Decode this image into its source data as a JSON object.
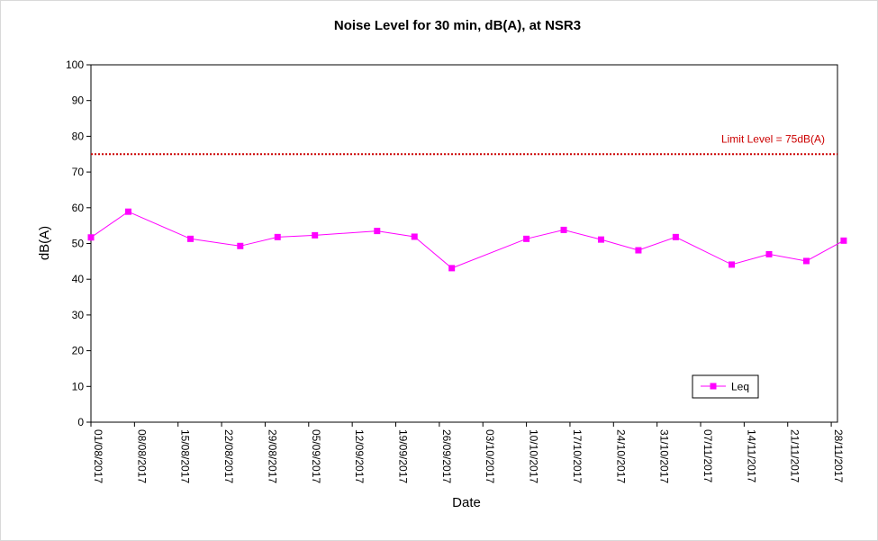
{
  "chart_data": {
    "type": "line",
    "title": "Noise Level for 30 min, dB(A), at NSR3",
    "xlabel": "Date",
    "ylabel": "dB(A)",
    "ylim": [
      0,
      100
    ],
    "yticks": [
      0,
      10,
      20,
      30,
      40,
      50,
      60,
      70,
      80,
      90,
      100
    ],
    "xlim": [
      "01/08/2017",
      "29/11/2017"
    ],
    "xticks": [
      "01/08/2017",
      "08/08/2017",
      "15/08/2017",
      "22/08/2017",
      "29/08/2017",
      "05/09/2017",
      "12/09/2017",
      "19/09/2017",
      "26/09/2017",
      "03/10/2017",
      "10/10/2017",
      "17/10/2017",
      "24/10/2017",
      "31/10/2017",
      "07/11/2017",
      "14/11/2017",
      "21/11/2017",
      "28/11/2017"
    ],
    "grid": false,
    "legend_position": "bottom-right",
    "limit_line": {
      "value": 75,
      "label": "Limit Level = 75dB(A)",
      "color": "#cc0000"
    },
    "series": [
      {
        "name": "Leq",
        "color": "#ff00ff",
        "x": [
          "01/08/2017",
          "07/08/2017",
          "17/08/2017",
          "25/08/2017",
          "31/08/2017",
          "06/09/2017",
          "16/09/2017",
          "22/09/2017",
          "28/09/2017",
          "10/10/2017",
          "16/10/2017",
          "22/10/2017",
          "28/10/2017",
          "03/11/2017",
          "12/11/2017",
          "18/11/2017",
          "24/11/2017",
          "30/11/2017"
        ],
        "values": [
          51.7,
          58.9,
          51.3,
          49.3,
          51.8,
          52.3,
          53.5,
          51.9,
          43.1,
          51.3,
          53.8,
          51.1,
          48.1,
          51.8,
          44.1,
          47.0,
          45.1,
          50.8
        ]
      }
    ]
  }
}
